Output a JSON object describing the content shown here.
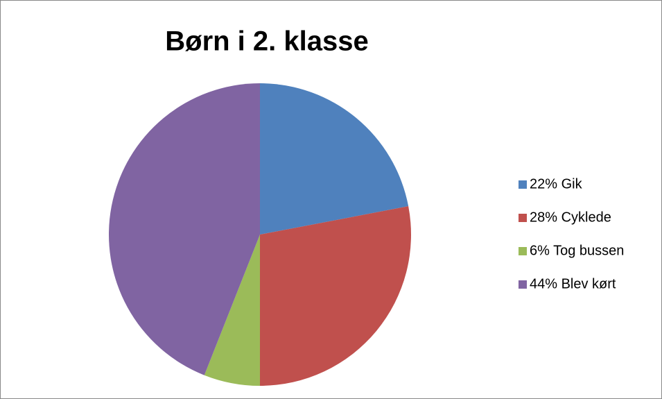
{
  "chart_data": {
    "type": "pie",
    "title": "Børn i 2. klasse",
    "categories": [
      "22% Gik",
      "28% Cyklede",
      "6% Tog bussen",
      "44% Blev kørt"
    ],
    "values": [
      22,
      28,
      6,
      44
    ],
    "colors": [
      "#4f81bd",
      "#c0504d",
      "#9bbb59",
      "#8064a2"
    ],
    "legend": "right"
  }
}
